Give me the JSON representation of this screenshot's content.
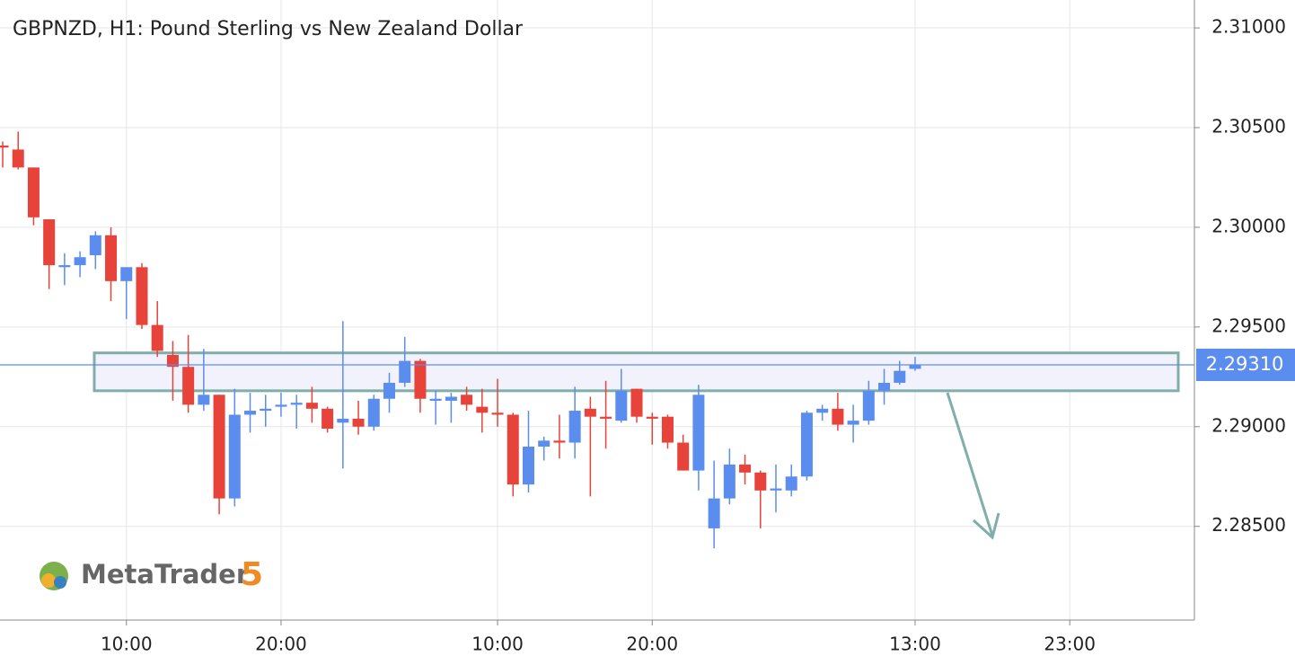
{
  "chart_data": {
    "type": "candlestick",
    "title": "GBPNZD, H1: Pound Sterling vs New Zealand Dollar",
    "categories": [
      null,
      null,
      null,
      null,
      null,
      null,
      null,
      null,
      "10:00",
      null,
      null,
      null,
      null,
      null,
      null,
      null,
      null,
      null,
      "20:00",
      null,
      null,
      null,
      null,
      null,
      null,
      null,
      null,
      null,
      null,
      null,
      null,
      null,
      "10:00",
      null,
      null,
      null,
      null,
      null,
      null,
      null,
      null,
      null,
      "20:00",
      null,
      null,
      null,
      null,
      null,
      null,
      null,
      null,
      null,
      null,
      null,
      null,
      null,
      null,
      null,
      null,
      "13:00",
      null,
      null,
      null,
      null,
      null,
      null,
      null,
      null,
      null,
      "23:00"
    ],
    "open": [
      2.3041,
      2.3039,
      2.303,
      2.3004,
      2.298,
      2.2981,
      2.2986,
      2.2996,
      2.2973,
      2.298,
      2.2951,
      2.2936,
      2.293,
      2.2911,
      2.2916,
      2.2864,
      2.2906,
      2.2908,
      2.291,
      2.2911,
      2.2912,
      2.2909,
      2.2902,
      2.2904,
      2.29,
      2.2914,
      2.2922,
      2.2933,
      2.2913,
      2.2913,
      2.2916,
      2.291,
      2.2907,
      2.2906,
      2.2871,
      2.289,
      2.2893,
      2.2892,
      2.2909,
      2.2905,
      2.2903,
      2.2919,
      2.2905,
      2.2905,
      2.2892,
      2.2878,
      2.2849,
      2.2864,
      2.2881,
      2.2877,
      2.2868,
      2.2868,
      2.2875,
      2.2907,
      2.2909,
      2.2901,
      2.2903,
      2.2918,
      2.2922,
      2.2929,
      null,
      null,
      null,
      null,
      null,
      null,
      null,
      null,
      null,
      null
    ],
    "high": [
      2.3043,
      2.3048,
      2.303,
      2.3004,
      2.2987,
      2.2988,
      2.2998,
      2.3,
      2.298,
      2.2982,
      2.2963,
      2.2943,
      2.2946,
      2.2939,
      2.2916,
      2.2919,
      2.2917,
      2.2916,
      2.2917,
      2.2916,
      2.292,
      2.291,
      2.2953,
      2.2913,
      2.2916,
      2.2927,
      2.2945,
      2.2934,
      2.2918,
      2.2917,
      2.292,
      2.2919,
      2.2924,
      2.2907,
      2.2908,
      2.2895,
      2.2906,
      2.292,
      2.2915,
      2.2923,
      2.2929,
      2.2919,
      2.2907,
      2.2906,
      2.2896,
      2.2921,
      2.2883,
      2.2889,
      2.2886,
      2.2878,
      2.2881,
      2.2881,
      2.2908,
      2.2911,
      2.2917,
      2.2911,
      2.2923,
      2.2929,
      2.2933,
      2.2935,
      null,
      null,
      null,
      null,
      null,
      null,
      null,
      null,
      null,
      null
    ],
    "low": [
      2.303,
      2.3029,
      2.3001,
      2.2969,
      2.2971,
      2.2975,
      2.2979,
      2.2963,
      2.2954,
      2.2949,
      2.2935,
      2.2913,
      2.2907,
      2.2908,
      2.2856,
      2.286,
      2.2897,
      2.29,
      2.2905,
      2.2899,
      2.2902,
      2.2897,
      2.2879,
      2.2896,
      2.2898,
      2.2907,
      2.292,
      2.2907,
      2.2901,
      2.2902,
      2.2908,
      2.2897,
      2.29,
      2.2865,
      2.2867,
      2.2883,
      2.2884,
      2.2884,
      2.2865,
      2.2889,
      2.2902,
      2.2902,
      2.2891,
      2.2889,
      2.2878,
      2.2868,
      2.2839,
      2.2861,
      2.2871,
      2.2849,
      2.2857,
      2.2865,
      2.2873,
      2.2903,
      2.2898,
      2.2892,
      2.2901,
      2.2911,
      2.2921,
      2.2928,
      null,
      null,
      null,
      null,
      null,
      null,
      null,
      null,
      null,
      null
    ],
    "close": [
      2.304,
      2.303,
      2.3005,
      2.2981,
      2.2981,
      2.2985,
      2.2996,
      2.2973,
      2.298,
      2.2951,
      2.2938,
      2.293,
      2.2911,
      2.2916,
      2.2864,
      2.2906,
      2.2908,
      2.2909,
      2.2911,
      2.2912,
      2.2909,
      2.2899,
      2.2904,
      2.29,
      2.2914,
      2.2922,
      2.2933,
      2.2914,
      2.2914,
      2.2915,
      2.2911,
      2.2907,
      2.2906,
      2.2871,
      2.289,
      2.2893,
      2.2892,
      2.2908,
      2.2905,
      2.2904,
      2.2918,
      2.2905,
      2.2904,
      2.2892,
      2.2878,
      2.2916,
      2.2864,
      2.2881,
      2.2877,
      2.2868,
      2.2869,
      2.2875,
      2.2907,
      2.2909,
      2.2901,
      2.2903,
      2.2918,
      2.2922,
      2.2928,
      2.2931,
      null,
      null,
      null,
      null,
      null,
      null,
      null,
      null,
      null,
      null
    ],
    "up_color": "#5b8dee",
    "down_color": "#e8433a",
    "ylim": [
      2.2803,
      2.3114
    ],
    "yticks": [
      {
        "value": 2.285,
        "label": "2.28500"
      },
      {
        "value": 2.29,
        "label": "2.29000"
      },
      {
        "value": 2.295,
        "label": "2.29500"
      },
      {
        "value": 2.3,
        "label": "2.30000"
      },
      {
        "value": 2.305,
        "label": "2.30500"
      },
      {
        "value": 2.31,
        "label": "2.31000"
      }
    ],
    "current_price": {
      "value": 2.2931,
      "label": "2.29310"
    },
    "zone": {
      "top": 2.2937,
      "bottom": 2.2918
    },
    "grid": true
  },
  "logo": {
    "name": "MetaTrader",
    "version": "5"
  }
}
